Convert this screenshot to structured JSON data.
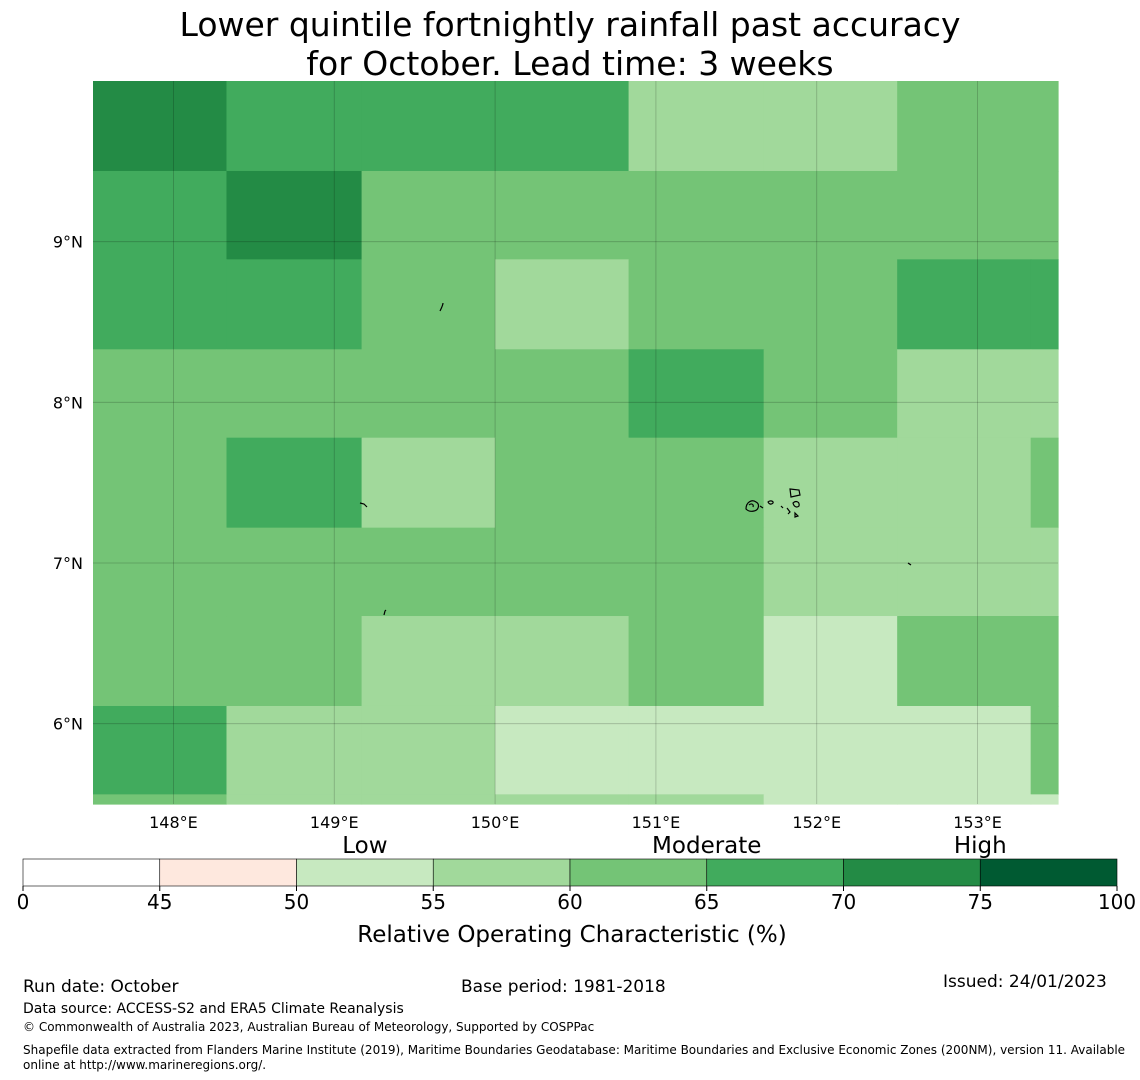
{
  "title_line1": "Lower quintile fortnightly rainfall past accuracy",
  "title_line2": "for October. Lead time: 3 weeks",
  "map": {
    "region_lon_range": [
      147.5,
      153.5
    ],
    "region_lat_range": [
      5.5,
      10.0
    ],
    "cell_lon_edges": [
      147.5,
      148.33,
      149.17,
      150.0,
      150.83,
      151.67,
      152.5,
      153.33,
      153.5
    ],
    "cell_lat_edges_top_down": [
      10.0,
      9.44,
      8.89,
      8.33,
      7.78,
      7.22,
      6.67,
      6.11,
      5.56,
      5.5
    ],
    "roc_grid_percent": [
      [
        72,
        67,
        67,
        67,
        57,
        57,
        62,
        62
      ],
      [
        67,
        72,
        62,
        62,
        62,
        62,
        62,
        62
      ],
      [
        67,
        67,
        62,
        57,
        62,
        62,
        67,
        67
      ],
      [
        62,
        62,
        62,
        62,
        67,
        62,
        57,
        57
      ],
      [
        62,
        67,
        57,
        62,
        62,
        57,
        57,
        62
      ],
      [
        62,
        62,
        62,
        62,
        62,
        57,
        57,
        57
      ],
      [
        62,
        62,
        57,
        57,
        62,
        52,
        62,
        62
      ],
      [
        67,
        57,
        57,
        52,
        52,
        52,
        52,
        62
      ],
      [
        62,
        57,
        57,
        57,
        57,
        52,
        52,
        52
      ]
    ],
    "lat_ticks": [
      {
        "value": 9,
        "label": "9°N"
      },
      {
        "value": 8,
        "label": "8°N"
      },
      {
        "value": 7,
        "label": "7°N"
      },
      {
        "value": 6,
        "label": "6°N"
      }
    ],
    "lon_ticks": [
      {
        "value": 148,
        "label": "148°E"
      },
      {
        "value": 149,
        "label": "149°E"
      },
      {
        "value": 150,
        "label": "150°E"
      },
      {
        "value": 151,
        "label": "151°E"
      },
      {
        "value": 152,
        "label": "152°E"
      },
      {
        "value": 153,
        "label": "153°E"
      }
    ],
    "islands": [
      "islet-1",
      "islet-2",
      "islet-3",
      "islet-4",
      "atoll-cluster"
    ]
  },
  "colorbar": {
    "category_labels": [
      "Low",
      "Moderate",
      "High"
    ],
    "bounds": [
      0,
      45,
      50,
      55,
      60,
      65,
      70,
      75,
      100
    ],
    "tick_labels": [
      "0",
      "45",
      "50",
      "55",
      "60",
      "65",
      "70",
      "75",
      "100"
    ],
    "colors": [
      "#ffffff",
      "#fee8de",
      "#c7e9c0",
      "#a1d99b",
      "#74c476",
      "#41ab5d",
      "#238b45",
      "#005a32"
    ],
    "label": "Relative Operating Characteristic (%)"
  },
  "footer": {
    "run_date": "Run date: October",
    "base_period": "Base period: 1981-2018",
    "issued": "Issued: 24/01/2023",
    "data_source": "Data source: ACCESS-S2 and ERA5 Climate Reanalysis",
    "copyright": "© Commonwealth of Australia 2023, Australian Bureau of Meteorology, Supported by COSPPac",
    "shapefile_line1": "Shapefile data extracted from Flanders Marine Institute (2019), Maritime Boundaries Geodatabase: Maritime Boundaries and Exclusive Economic Zones (200NM), version 11. Available",
    "shapefile_line2": "online at http://www.marineregions.org/."
  }
}
